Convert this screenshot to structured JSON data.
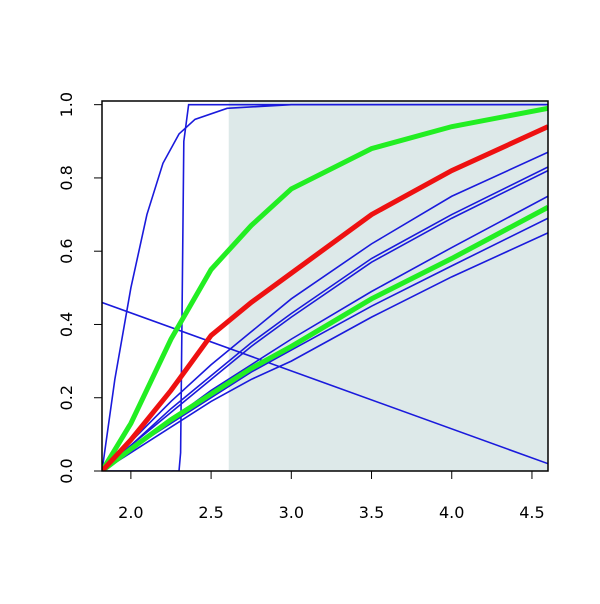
{
  "chart_data": {
    "type": "line",
    "x": [
      1.82,
      2.0,
      2.25,
      2.5,
      2.75,
      3.0,
      3.5,
      4.0,
      4.6
    ],
    "xlim": [
      1.82,
      4.6
    ],
    "ylim": [
      0,
      1.01
    ],
    "xticks": [
      {
        "value": 2,
        "label": "2.0"
      },
      2.5,
      {
        "value": 3,
        "label": "3.0"
      },
      3.5,
      {
        "value": 4,
        "label": "4.0"
      },
      4.5
    ],
    "yticks": [
      {
        "value": 0,
        "label": "0.0"
      },
      0.2,
      0.4,
      0.6,
      0.8,
      {
        "value": 1,
        "label": "1.0"
      }
    ],
    "shaded_region": {
      "x": [
        2.61,
        4.6
      ],
      "color": "#dde9e9"
    },
    "series": [
      {
        "color": "#1a1adc",
        "line_width": 1.6,
        "x": [
          1.82,
          1.9,
          2.0,
          2.1,
          2.2,
          2.3,
          2.4,
          2.6,
          3.0,
          4.6
        ],
        "values": [
          0,
          0.25,
          0.5,
          0.7,
          0.84,
          0.92,
          0.96,
          0.99,
          1.0,
          1.0
        ]
      },
      {
        "color": "#1a1adc",
        "line_width": 1.6,
        "x": [
          1.82,
          2.3,
          2.31,
          2.33,
          2.36,
          4.6
        ],
        "values": [
          0,
          0,
          0.05,
          0.9,
          1,
          1
        ]
      },
      {
        "color": "#1a1adc",
        "line_width": 1.6,
        "x": [
          1.82,
          4.6
        ],
        "values": [
          0.46,
          0.02
        ]
      },
      {
        "color": "#1a1adc",
        "line_width": 1.6,
        "values": [
          0,
          0.08,
          0.19,
          0.29,
          0.38,
          0.47,
          0.62,
          0.75,
          0.87
        ]
      },
      {
        "color": "#1a1adc",
        "line_width": 1.6,
        "values": [
          0,
          0.07,
          0.17,
          0.26,
          0.35,
          0.43,
          0.58,
          0.7,
          0.83
        ]
      },
      {
        "color": "#1a1adc",
        "line_width": 1.6,
        "values": [
          0,
          0.07,
          0.16,
          0.25,
          0.34,
          0.42,
          0.57,
          0.69,
          0.82
        ]
      },
      {
        "color": "#1a1adc",
        "line_width": 1.6,
        "values": [
          0,
          0.06,
          0.14,
          0.22,
          0.29,
          0.36,
          0.49,
          0.61,
          0.75
        ]
      },
      {
        "color": "#1a1adc",
        "line_width": 1.6,
        "values": [
          0,
          0.06,
          0.13,
          0.2,
          0.27,
          0.33,
          0.45,
          0.56,
          0.69
        ]
      },
      {
        "color": "#1a1adc",
        "line_width": 1.6,
        "values": [
          0,
          0.05,
          0.12,
          0.19,
          0.25,
          0.3,
          0.42,
          0.53,
          0.65
        ]
      },
      {
        "color": "#22ee22",
        "line_width": 5,
        "values": [
          0,
          0.06,
          0.14,
          0.21,
          0.28,
          0.34,
          0.47,
          0.58,
          0.72
        ]
      },
      {
        "color": "#22ee22",
        "line_width": 5,
        "values": [
          0,
          0.13,
          0.36,
          0.55,
          0.67,
          0.77,
          0.88,
          0.94,
          0.99
        ]
      },
      {
        "color": "#ee1111",
        "line_width": 5,
        "values": [
          0,
          0.085,
          0.22,
          0.37,
          0.46,
          0.54,
          0.7,
          0.82,
          0.94
        ]
      }
    ]
  }
}
